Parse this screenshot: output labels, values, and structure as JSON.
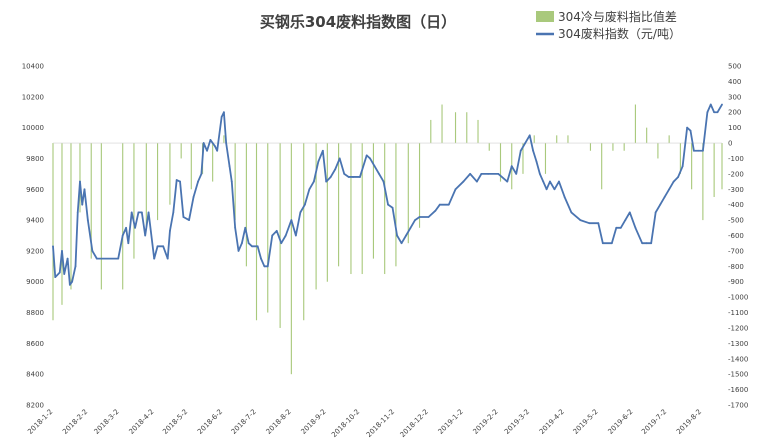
{
  "chart_data": {
    "type": "bar+line",
    "title": "买钢乐304废料指数图（日）",
    "legend": [
      {
        "label": "304冷与废料指比值差",
        "color": "#a9c97c",
        "kind": "bar"
      },
      {
        "label": "304废料指数（元/吨）",
        "color": "#4a74b1",
        "kind": "line"
      }
    ],
    "legend_position": "top-right",
    "left_axis": {
      "ticks": [
        8200,
        8400,
        8600,
        8800,
        9000,
        9200,
        9400,
        9600,
        9800,
        10000,
        10200,
        10400
      ],
      "ylim": [
        8200,
        10400
      ]
    },
    "right_axis": {
      "ticks": [
        -1700,
        -1600,
        -1500,
        -1400,
        -1300,
        -1200,
        -1100,
        -1000,
        -900,
        -800,
        -700,
        -600,
        -500,
        -400,
        -300,
        -200,
        -100,
        0,
        100,
        200,
        300,
        400,
        500
      ],
      "ylim": [
        -1700,
        500
      ]
    },
    "x_tick_labels": [
      "2018-1-2",
      "2018-2-2",
      "2018-3-2",
      "2018-4-2",
      "2018-5-2",
      "2018-6-2",
      "2018-7-2",
      "2018-8-2",
      "2018-9-2",
      "2018-10-2",
      "2018-11-2",
      "2018-12-2",
      "2019-1-2",
      "2019-2-2",
      "2019-3-2",
      "2019-4-2",
      "2019-5-2",
      "2019-6-2",
      "2019-7-2",
      "2019-8-2"
    ],
    "x_range": [
      "2018-01-02",
      "2019-08-20"
    ],
    "series": [
      {
        "name": "304废料指数（元/吨）",
        "axis": "left",
        "points": [
          [
            "2018-01-02",
            9230
          ],
          [
            "2018-01-04",
            9030
          ],
          [
            "2018-01-08",
            9060
          ],
          [
            "2018-01-10",
            9200
          ],
          [
            "2018-01-12",
            9050
          ],
          [
            "2018-01-15",
            9150
          ],
          [
            "2018-01-17",
            8980
          ],
          [
            "2018-01-19",
            9000
          ],
          [
            "2018-01-22",
            9100
          ],
          [
            "2018-01-24",
            9450
          ],
          [
            "2018-01-26",
            9650
          ],
          [
            "2018-01-28",
            9500
          ],
          [
            "2018-01-30",
            9600
          ],
          [
            "2018-02-02",
            9400
          ],
          [
            "2018-02-06",
            9200
          ],
          [
            "2018-02-10",
            9150
          ],
          [
            "2018-03-01",
            9150
          ],
          [
            "2018-03-05",
            9300
          ],
          [
            "2018-03-08",
            9350
          ],
          [
            "2018-03-10",
            9250
          ],
          [
            "2018-03-13",
            9450
          ],
          [
            "2018-03-16",
            9350
          ],
          [
            "2018-03-19",
            9450
          ],
          [
            "2018-03-22",
            9450
          ],
          [
            "2018-03-25",
            9300
          ],
          [
            "2018-03-28",
            9450
          ],
          [
            "2018-04-02",
            9150
          ],
          [
            "2018-04-05",
            9230
          ],
          [
            "2018-04-10",
            9230
          ],
          [
            "2018-04-14",
            9150
          ],
          [
            "2018-04-16",
            9330
          ],
          [
            "2018-04-19",
            9450
          ],
          [
            "2018-04-22",
            9660
          ],
          [
            "2018-04-25",
            9650
          ],
          [
            "2018-04-28",
            9420
          ],
          [
            "2018-05-03",
            9400
          ],
          [
            "2018-05-07",
            9550
          ],
          [
            "2018-05-11",
            9650
          ],
          [
            "2018-05-14",
            9700
          ],
          [
            "2018-05-16",
            9900
          ],
          [
            "2018-05-19",
            9850
          ],
          [
            "2018-05-22",
            9920
          ],
          [
            "2018-05-26",
            9880
          ],
          [
            "2018-05-28",
            9850
          ],
          [
            "2018-06-01",
            10070
          ],
          [
            "2018-06-03",
            10100
          ],
          [
            "2018-06-05",
            9900
          ],
          [
            "2018-06-08",
            9750
          ],
          [
            "2018-06-10",
            9650
          ],
          [
            "2018-06-13",
            9350
          ],
          [
            "2018-06-16",
            9200
          ],
          [
            "2018-06-19",
            9250
          ],
          [
            "2018-06-22",
            9350
          ],
          [
            "2018-06-25",
            9250
          ],
          [
            "2018-06-28",
            9230
          ],
          [
            "2018-07-03",
            9230
          ],
          [
            "2018-07-06",
            9150
          ],
          [
            "2018-07-09",
            9100
          ],
          [
            "2018-07-12",
            9100
          ],
          [
            "2018-07-16",
            9300
          ],
          [
            "2018-07-20",
            9330
          ],
          [
            "2018-07-24",
            9250
          ],
          [
            "2018-07-28",
            9300
          ],
          [
            "2018-08-02",
            9400
          ],
          [
            "2018-08-06",
            9300
          ],
          [
            "2018-08-10",
            9450
          ],
          [
            "2018-08-14",
            9500
          ],
          [
            "2018-08-18",
            9600
          ],
          [
            "2018-08-22",
            9650
          ],
          [
            "2018-08-26",
            9780
          ],
          [
            "2018-08-30",
            9850
          ],
          [
            "2018-09-02",
            9650
          ],
          [
            "2018-09-06",
            9680
          ],
          [
            "2018-09-10",
            9730
          ],
          [
            "2018-09-14",
            9800
          ],
          [
            "2018-09-18",
            9700
          ],
          [
            "2018-09-22",
            9680
          ],
          [
            "2018-09-26",
            9680
          ],
          [
            "2018-10-02",
            9680
          ],
          [
            "2018-10-08",
            9820
          ],
          [
            "2018-10-11",
            9800
          ],
          [
            "2018-10-15",
            9750
          ],
          [
            "2018-10-19",
            9700
          ],
          [
            "2018-10-23",
            9650
          ],
          [
            "2018-10-27",
            9500
          ],
          [
            "2018-10-31",
            9480
          ],
          [
            "2018-11-04",
            9300
          ],
          [
            "2018-11-08",
            9250
          ],
          [
            "2018-11-12",
            9300
          ],
          [
            "2018-11-16",
            9350
          ],
          [
            "2018-11-20",
            9400
          ],
          [
            "2018-11-24",
            9420
          ],
          [
            "2018-12-02",
            9420
          ],
          [
            "2018-12-08",
            9460
          ],
          [
            "2018-12-12",
            9500
          ],
          [
            "2018-12-20",
            9500
          ],
          [
            "2018-12-26",
            9600
          ],
          [
            "2019-01-02",
            9650
          ],
          [
            "2019-01-08",
            9700
          ],
          [
            "2019-01-14",
            9650
          ],
          [
            "2019-01-18",
            9700
          ],
          [
            "2019-01-24",
            9700
          ],
          [
            "2019-02-02",
            9700
          ],
          [
            "2019-02-10",
            9650
          ],
          [
            "2019-02-14",
            9750
          ],
          [
            "2019-02-18",
            9700
          ],
          [
            "2019-02-22",
            9850
          ],
          [
            "2019-02-26",
            9900
          ],
          [
            "2019-03-02",
            9950
          ],
          [
            "2019-03-05",
            9850
          ],
          [
            "2019-03-08",
            9780
          ],
          [
            "2019-03-11",
            9700
          ],
          [
            "2019-03-14",
            9650
          ],
          [
            "2019-03-17",
            9600
          ],
          [
            "2019-03-20",
            9650
          ],
          [
            "2019-03-24",
            9600
          ],
          [
            "2019-03-28",
            9650
          ],
          [
            "2019-04-02",
            9550
          ],
          [
            "2019-04-08",
            9450
          ],
          [
            "2019-04-16",
            9400
          ],
          [
            "2019-04-24",
            9380
          ],
          [
            "2019-05-02",
            9380
          ],
          [
            "2019-05-06",
            9250
          ],
          [
            "2019-05-14",
            9250
          ],
          [
            "2019-05-18",
            9350
          ],
          [
            "2019-05-22",
            9350
          ],
          [
            "2019-05-26",
            9400
          ],
          [
            "2019-05-30",
            9450
          ],
          [
            "2019-06-04",
            9350
          ],
          [
            "2019-06-10",
            9250
          ],
          [
            "2019-06-14",
            9250
          ],
          [
            "2019-06-18",
            9250
          ],
          [
            "2019-06-22",
            9450
          ],
          [
            "2019-06-26",
            9500
          ],
          [
            "2019-06-30",
            9550
          ],
          [
            "2019-07-04",
            9600
          ],
          [
            "2019-07-08",
            9650
          ],
          [
            "2019-07-12",
            9680
          ],
          [
            "2019-07-16",
            9750
          ],
          [
            "2019-07-20",
            10000
          ],
          [
            "2019-07-23",
            9980
          ],
          [
            "2019-07-26",
            9850
          ],
          [
            "2019-07-30",
            9850
          ],
          [
            "2019-08-03",
            9850
          ],
          [
            "2019-08-07",
            10100
          ],
          [
            "2019-08-10",
            10150
          ],
          [
            "2019-08-13",
            10100
          ],
          [
            "2019-08-16",
            10100
          ],
          [
            "2019-08-20",
            10150
          ]
        ]
      },
      {
        "name": "304冷与废料指比值差",
        "axis": "right",
        "bar_width_days": 1,
        "points": [
          [
            "2018-01-02",
            -1150
          ],
          [
            "2018-01-10",
            -1050
          ],
          [
            "2018-01-18",
            -950
          ],
          [
            "2018-01-26",
            -450
          ],
          [
            "2018-02-05",
            -750
          ],
          [
            "2018-02-14",
            -950
          ],
          [
            "2018-03-05",
            -950
          ],
          [
            "2018-03-15",
            -750
          ],
          [
            "2018-03-26",
            -550
          ],
          [
            "2018-04-05",
            -500
          ],
          [
            "2018-04-16",
            -400
          ],
          [
            "2018-04-26",
            -100
          ],
          [
            "2018-05-05",
            -300
          ],
          [
            "2018-05-15",
            -200
          ],
          [
            "2018-05-24",
            -250
          ],
          [
            "2018-06-03",
            50
          ],
          [
            "2018-06-13",
            -500
          ],
          [
            "2018-06-23",
            -800
          ],
          [
            "2018-07-02",
            -1150
          ],
          [
            "2018-07-12",
            -1100
          ],
          [
            "2018-07-23",
            -1200
          ],
          [
            "2018-08-02",
            -1500
          ],
          [
            "2018-08-13",
            -1150
          ],
          [
            "2018-08-24",
            -950
          ],
          [
            "2018-09-03",
            -900
          ],
          [
            "2018-09-13",
            -800
          ],
          [
            "2018-09-24",
            -850
          ],
          [
            "2018-10-04",
            -850
          ],
          [
            "2018-10-14",
            -750
          ],
          [
            "2018-10-24",
            -850
          ],
          [
            "2018-11-03",
            -800
          ],
          [
            "2018-11-14",
            -650
          ],
          [
            "2018-11-24",
            -550
          ],
          [
            "2018-12-04",
            150
          ],
          [
            "2018-12-14",
            250
          ],
          [
            "2018-12-26",
            200
          ],
          [
            "2019-01-05",
            200
          ],
          [
            "2019-01-15",
            150
          ],
          [
            "2019-01-25",
            -50
          ],
          [
            "2019-02-04",
            -250
          ],
          [
            "2019-02-14",
            -300
          ],
          [
            "2019-02-24",
            -200
          ],
          [
            "2019-03-06",
            50
          ],
          [
            "2019-03-16",
            -200
          ],
          [
            "2019-03-26",
            50
          ],
          [
            "2019-04-05",
            50
          ],
          [
            "2019-04-15",
            0
          ],
          [
            "2019-04-25",
            -50
          ],
          [
            "2019-05-05",
            -300
          ],
          [
            "2019-05-15",
            -50
          ],
          [
            "2019-05-25",
            -50
          ],
          [
            "2019-06-04",
            250
          ],
          [
            "2019-06-14",
            100
          ],
          [
            "2019-06-24",
            -100
          ],
          [
            "2019-07-04",
            50
          ],
          [
            "2019-07-14",
            -200
          ],
          [
            "2019-07-24",
            -300
          ],
          [
            "2019-08-03",
            -500
          ],
          [
            "2019-08-13",
            -350
          ],
          [
            "2019-08-20",
            -300
          ]
        ]
      }
    ],
    "grid": false
  }
}
